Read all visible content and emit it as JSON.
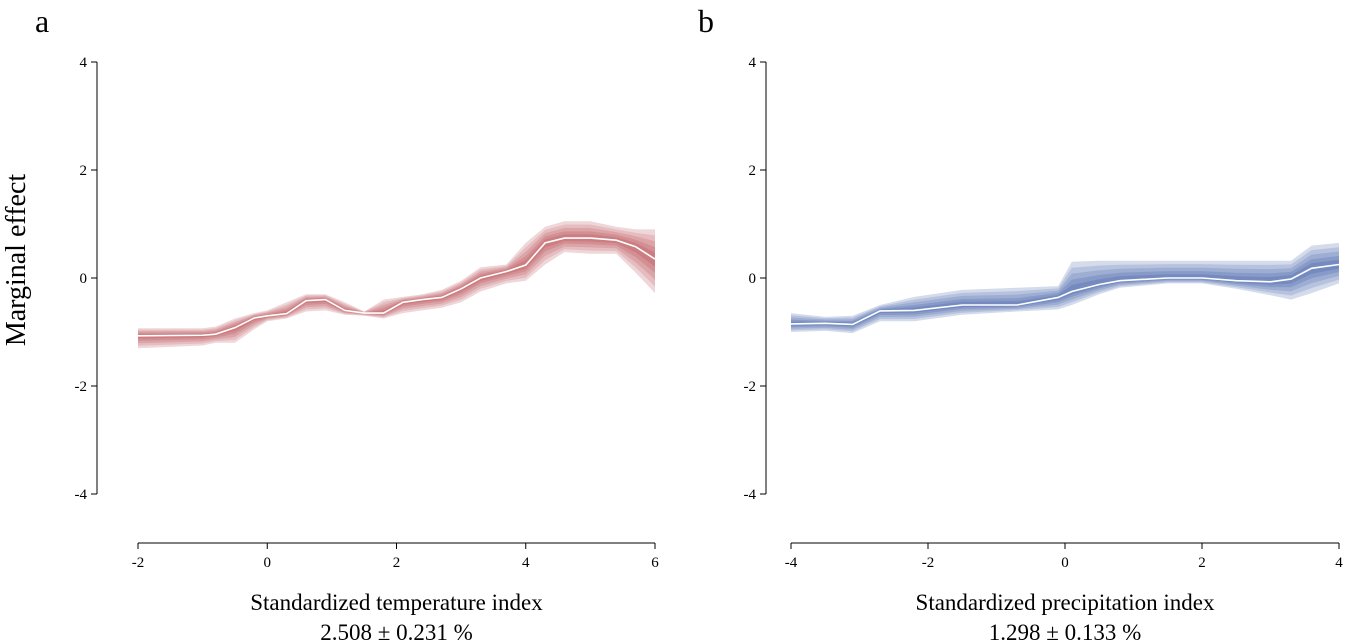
{
  "ylabel": "Marginal effect",
  "chart_data": [
    {
      "type": "area",
      "panel_label": "a",
      "xlabel": "Standardized temperature index",
      "note": "2.508 ± 0.231 %",
      "xlim": [
        -2,
        6
      ],
      "ylim": [
        -4,
        4
      ],
      "xticks": [
        -2,
        0,
        2,
        4,
        6
      ],
      "yticks": [
        -4,
        -2,
        0,
        2,
        4
      ],
      "grid": false,
      "color": "#b5464d",
      "x": [
        -2,
        -1,
        -0.8,
        -0.5,
        -0.2,
        0,
        0.3,
        0.6,
        0.9,
        1.2,
        1.5,
        1.8,
        2.1,
        2.4,
        2.7,
        3.0,
        3.3,
        3.7,
        4.0,
        4.3,
        4.6,
        5.0,
        5.4,
        5.7,
        6.0
      ],
      "mean": [
        -1.07,
        -1.06,
        -1.04,
        -0.92,
        -0.74,
        -0.7,
        -0.66,
        -0.42,
        -0.4,
        -0.6,
        -0.65,
        -0.65,
        -0.45,
        -0.4,
        -0.36,
        -0.2,
        0.0,
        0.12,
        0.24,
        0.65,
        0.74,
        0.74,
        0.7,
        0.58,
        0.35
      ],
      "lower": [
        -1.3,
        -1.25,
        -1.2,
        -1.2,
        -0.95,
        -0.8,
        -0.75,
        -0.62,
        -0.6,
        -0.68,
        -0.7,
        -0.75,
        -0.65,
        -0.6,
        -0.55,
        -0.45,
        -0.25,
        -0.1,
        -0.05,
        0.25,
        0.48,
        0.45,
        0.45,
        0.1,
        -0.28
      ],
      "upper": [
        -0.93,
        -0.93,
        -0.9,
        -0.75,
        -0.65,
        -0.6,
        -0.45,
        -0.3,
        -0.3,
        -0.45,
        -0.62,
        -0.4,
        -0.35,
        -0.3,
        -0.22,
        -0.05,
        0.2,
        0.25,
        0.65,
        0.95,
        1.05,
        1.05,
        0.95,
        0.9,
        0.9
      ]
    },
    {
      "type": "area",
      "panel_label": "b",
      "xlabel": "Standardized precipitation index",
      "note": "1.298 ± 0.133 %",
      "xlim": [
        -4,
        4
      ],
      "ylim": [
        -4,
        4
      ],
      "xticks": [
        -4,
        -2,
        0,
        2,
        4
      ],
      "yticks": [
        -4,
        -2,
        0,
        2,
        4
      ],
      "grid": false,
      "color": "#3a5aa5",
      "x": [
        -4,
        -3.5,
        -3.1,
        -2.7,
        -2.2,
        -1.5,
        -0.7,
        -0.1,
        0.1,
        0.5,
        0.8,
        1.5,
        2.0,
        2.5,
        3.0,
        3.3,
        3.6,
        4.0
      ],
      "mean": [
        -0.85,
        -0.84,
        -0.86,
        -0.61,
        -0.6,
        -0.5,
        -0.5,
        -0.36,
        -0.25,
        -0.12,
        -0.05,
        0.0,
        0.0,
        -0.05,
        -0.07,
        -0.02,
        0.18,
        0.25
      ],
      "lower": [
        -1.0,
        -0.98,
        -1.02,
        -0.8,
        -0.8,
        -0.68,
        -0.62,
        -0.58,
        -0.5,
        -0.3,
        -0.18,
        -0.1,
        -0.1,
        -0.2,
        -0.32,
        -0.4,
        -0.28,
        -0.1
      ],
      "upper": [
        -0.65,
        -0.72,
        -0.7,
        -0.5,
        -0.35,
        -0.22,
        -0.18,
        -0.15,
        0.3,
        0.32,
        0.32,
        0.32,
        0.32,
        0.32,
        0.32,
        0.32,
        0.6,
        0.65
      ]
    }
  ]
}
